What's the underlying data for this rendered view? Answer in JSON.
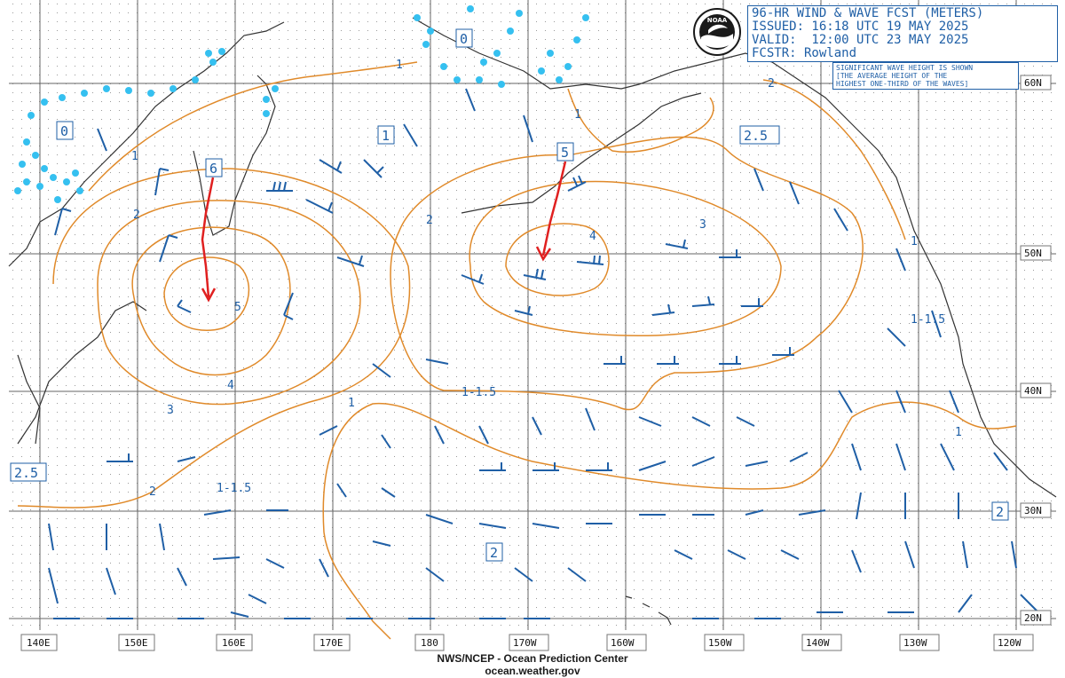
{
  "header": {
    "title": "96-HR WIND & WAVE FCST (METERS)",
    "issued": "ISSUED: 16:18 UTC 19 MAY 2025",
    "valid": "VALID:  12:00 UTC 23 MAY 2025",
    "forecaster": "FCSTR: Rowland"
  },
  "note": {
    "line1": "SIGNIFICANT WAVE HEIGHT IS SHOWN",
    "line2": "[THE AVERAGE HEIGHT OF THE",
    "line3": "HIGHEST ONE-THIRD OF THE WAVES]"
  },
  "logo_text": "NOAA",
  "footer": {
    "line1": "NWS/NCEP - Ocean Prediction Center",
    "line2": "ocean.weather.gov"
  },
  "longitude_labels": [
    "140E",
    "150E",
    "160E",
    "170E",
    "180",
    "170W",
    "160W",
    "150W",
    "140W",
    "130W",
    "120W"
  ],
  "latitude_labels": [
    "60N",
    "50N",
    "40N",
    "30N",
    "20N"
  ],
  "boxed_labels": [
    "0",
    "0",
    "1",
    "6",
    "5",
    "2.5",
    "2.5",
    "2",
    "2"
  ],
  "contour_labels": [
    "1",
    "1",
    "1",
    "2",
    "2",
    "2",
    "3",
    "3",
    "4",
    "4",
    "5",
    "1",
    "1",
    "1",
    "2",
    "1-1.5",
    "1-1.5",
    "1-1.5"
  ],
  "colors": {
    "contour": "#e08a2a",
    "barb": "#1f5fa6",
    "ice": "#35c0f0",
    "track": "#e02020",
    "grid": "#555555",
    "coast": "#333333"
  }
}
